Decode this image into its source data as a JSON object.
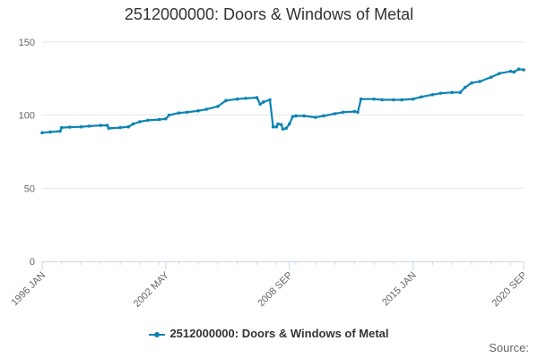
{
  "chart_data": {
    "type": "line",
    "title": "2512000000: Doors & Windows of Metal",
    "source_label": "Source:",
    "ylim": [
      0,
      150
    ],
    "y_ticks": [
      "0",
      "50",
      "100",
      "150"
    ],
    "x_tick_labels": [
      "1996 JAN",
      "2002 MAY",
      "2008 SEP",
      "2015 JAN",
      "2020 SEP"
    ],
    "x_tick_dates": [
      "1996-01",
      "2002-05",
      "2008-09",
      "2015-01",
      "2020-09"
    ],
    "x_range": [
      "1996-01",
      "2020-09"
    ],
    "grid": true,
    "legend_position": "bottom",
    "series": [
      {
        "name": "2512000000: Doors & Windows of Metal",
        "color": "#0d84b4",
        "points": [
          [
            "1996-01",
            88
          ],
          [
            "1996-06",
            88.5
          ],
          [
            "1996-12",
            89
          ],
          [
            "1997-01",
            91.5
          ],
          [
            "1997-06",
            91.8
          ],
          [
            "1998-01",
            92
          ],
          [
            "1998-06",
            92.5
          ],
          [
            "1999-01",
            93
          ],
          [
            "1999-05",
            93
          ],
          [
            "1999-06",
            91
          ],
          [
            "2000-01",
            91.5
          ],
          [
            "2000-06",
            92
          ],
          [
            "2000-09",
            94
          ],
          [
            "2001-01",
            95.5
          ],
          [
            "2001-06",
            96.5
          ],
          [
            "2002-01",
            97
          ],
          [
            "2002-05",
            97.5
          ],
          [
            "2002-07",
            100
          ],
          [
            "2003-01",
            101.5
          ],
          [
            "2003-06",
            102
          ],
          [
            "2004-01",
            103
          ],
          [
            "2004-06",
            104
          ],
          [
            "2005-01",
            106
          ],
          [
            "2005-06",
            110
          ],
          [
            "2006-01",
            111
          ],
          [
            "2006-06",
            111.5
          ],
          [
            "2007-01",
            112
          ],
          [
            "2007-03",
            107.5
          ],
          [
            "2007-05",
            109
          ],
          [
            "2007-09",
            110.5
          ],
          [
            "2007-11",
            92
          ],
          [
            "2008-01",
            92
          ],
          [
            "2008-02",
            94
          ],
          [
            "2008-04",
            93.5
          ],
          [
            "2008-05",
            90.5
          ],
          [
            "2008-07",
            91
          ],
          [
            "2008-09",
            94
          ],
          [
            "2008-11",
            99
          ],
          [
            "2009-01",
            99.5
          ],
          [
            "2009-06",
            99.5
          ],
          [
            "2010-01",
            98.5
          ],
          [
            "2010-06",
            99.5
          ],
          [
            "2011-01",
            101
          ],
          [
            "2011-06",
            102
          ],
          [
            "2012-01",
            102.5
          ],
          [
            "2012-03",
            102
          ],
          [
            "2012-05",
            111
          ],
          [
            "2013-01",
            111
          ],
          [
            "2013-06",
            110.5
          ],
          [
            "2014-01",
            110.5
          ],
          [
            "2014-06",
            110.5
          ],
          [
            "2015-01",
            111
          ],
          [
            "2015-06",
            112.5
          ],
          [
            "2016-01",
            114
          ],
          [
            "2016-06",
            115
          ],
          [
            "2017-01",
            115.5
          ],
          [
            "2017-06",
            115.5
          ],
          [
            "2017-09",
            119
          ],
          [
            "2018-01",
            122
          ],
          [
            "2018-06",
            123
          ],
          [
            "2019-01",
            126
          ],
          [
            "2019-06",
            128.5
          ],
          [
            "2020-01",
            130
          ],
          [
            "2020-03",
            129.5
          ],
          [
            "2020-06",
            131.5
          ],
          [
            "2020-09",
            131
          ]
        ]
      }
    ]
  }
}
